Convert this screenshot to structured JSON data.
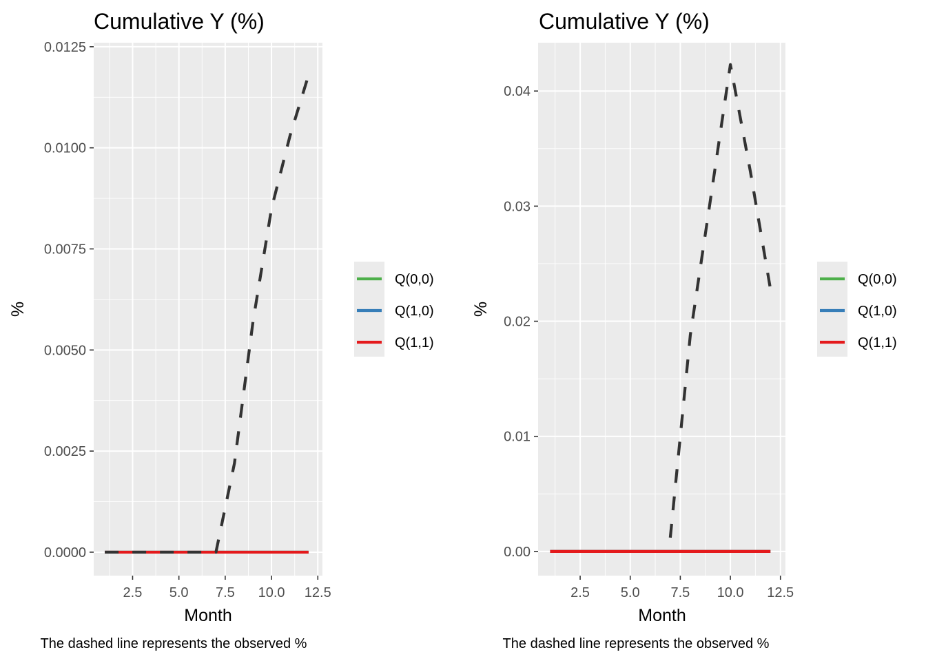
{
  "colors": {
    "panel_bg": "#ebebeb",
    "grid": "#ffffff",
    "observed": "#333333",
    "Q00": "#4daf4a",
    "Q10": "#377eb8",
    "Q11": "#e41a1c"
  },
  "chart_data": [
    {
      "type": "line",
      "title": "Cumulative Y (%)",
      "xlabel": "Month",
      "ylabel": "%",
      "caption": "The dashed line represents the observed %",
      "xlim": [
        0.4,
        12.75
      ],
      "ylim": [
        -0.00058,
        0.0126
      ],
      "x_ticks": [
        2.5,
        5.0,
        7.5,
        10.0,
        12.5
      ],
      "x_tick_labels": [
        "2.5",
        "5.0",
        "7.5",
        "10.0",
        "12.5"
      ],
      "y_ticks": [
        0,
        0.0025,
        0.005,
        0.0075,
        0.01,
        0.0125
      ],
      "y_tick_labels": [
        "0.0000",
        "0.0025",
        "0.0050",
        "0.0075",
        "0.0100",
        "0.0125"
      ],
      "legend_position": "right",
      "series": [
        {
          "name": "Q(0,0)",
          "color_key": "Q00",
          "x": [
            1,
            2,
            3,
            4,
            5,
            6,
            7,
            8,
            9,
            10,
            11,
            12
          ],
          "y": [
            0,
            0,
            0,
            0,
            0,
            0,
            0,
            0,
            0,
            0,
            0,
            0
          ]
        },
        {
          "name": "Q(1,0)",
          "color_key": "Q10",
          "x": [
            1,
            2,
            3,
            4,
            5,
            6,
            7,
            8,
            9,
            10,
            11,
            12
          ],
          "y": [
            0,
            0,
            0,
            0,
            0,
            0,
            0,
            0,
            0,
            0,
            0,
            0
          ]
        },
        {
          "name": "Q(1,1)",
          "color_key": "Q11",
          "x": [
            1,
            2,
            3,
            4,
            5,
            6,
            7,
            8,
            9,
            10,
            11,
            12
          ],
          "y": [
            0,
            0,
            0,
            0,
            0,
            0,
            0,
            0,
            0,
            0,
            0,
            0
          ]
        }
      ],
      "observed": {
        "x": [
          1,
          2,
          3,
          4,
          5,
          6,
          7,
          8,
          9,
          10,
          11,
          12
        ],
        "y": [
          0,
          0,
          0,
          0,
          0,
          0,
          0,
          0.0022,
          0.0057,
          0.0085,
          0.0103,
          0.0118
        ],
        "dashed": true
      }
    },
    {
      "type": "line",
      "title": "Cumulative Y (%)",
      "xlabel": "Month",
      "ylabel": "%",
      "caption": "The dashed line represents the observed %",
      "xlim": [
        0.4,
        12.75
      ],
      "ylim": [
        -0.0021,
        0.0442
      ],
      "x_ticks": [
        2.5,
        5.0,
        7.5,
        10.0,
        12.5
      ],
      "x_tick_labels": [
        "2.5",
        "5.0",
        "7.5",
        "10.0",
        "12.5"
      ],
      "y_ticks": [
        0,
        0.01,
        0.02,
        0.03,
        0.04
      ],
      "y_tick_labels": [
        "0.00",
        "0.01",
        "0.02",
        "0.03",
        "0.04"
      ],
      "legend_position": "right",
      "series": [
        {
          "name": "Q(0,0)",
          "color_key": "Q00",
          "x": [
            1,
            2,
            3,
            4,
            5,
            6,
            7,
            8,
            9,
            10,
            11,
            12
          ],
          "y": [
            0,
            0,
            0,
            0,
            0,
            0,
            0,
            0,
            0,
            0,
            0,
            0
          ]
        },
        {
          "name": "Q(1,0)",
          "color_key": "Q10",
          "x": [
            1,
            2,
            3,
            4,
            5,
            6,
            7,
            8,
            9,
            10,
            11,
            12
          ],
          "y": [
            0,
            0,
            0,
            0,
            0,
            0,
            0,
            0,
            0,
            0,
            0,
            0
          ]
        },
        {
          "name": "Q(1,1)",
          "color_key": "Q11",
          "x": [
            1,
            2,
            3,
            4,
            5,
            6,
            7,
            8,
            9,
            10,
            11,
            12
          ],
          "y": [
            0,
            0,
            0,
            0,
            0,
            0,
            0,
            0,
            0,
            0,
            0,
            0
          ]
        }
      ],
      "observed": {
        "x": [
          7,
          8,
          9,
          10,
          11,
          12
        ],
        "y": [
          0.0012,
          0.0188,
          0.0305,
          0.0423,
          0.033,
          0.0228
        ],
        "dashed": true
      }
    }
  ]
}
